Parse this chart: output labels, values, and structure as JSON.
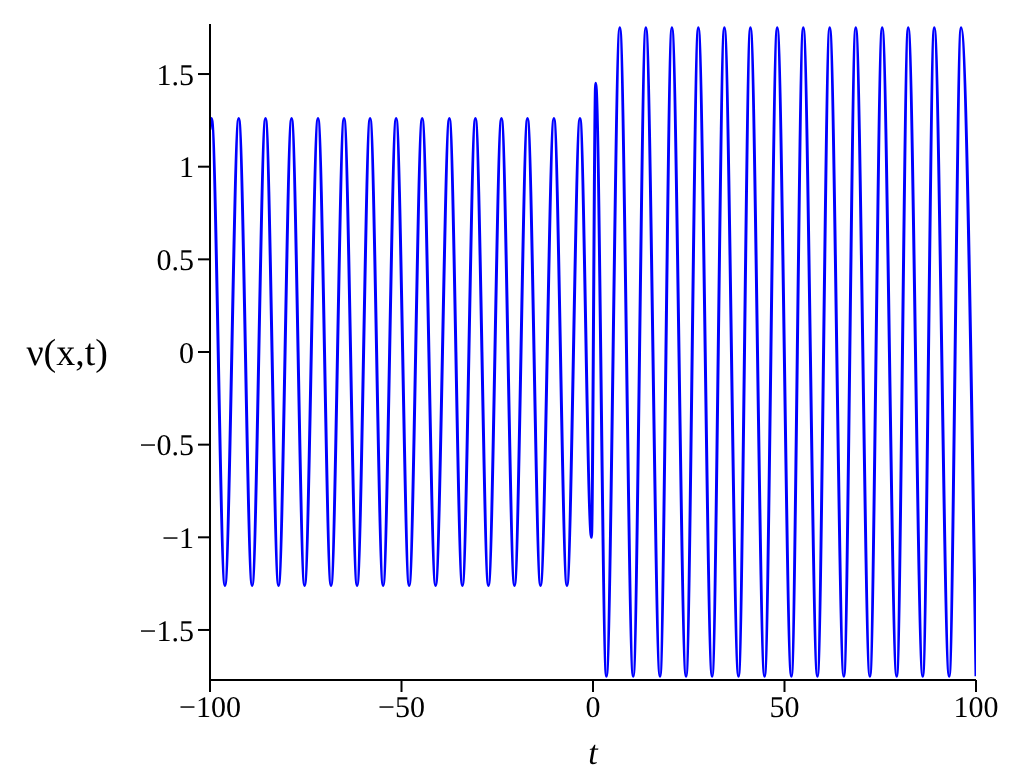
{
  "chart_data": {
    "type": "line",
    "xlabel": "t",
    "ylabel": "ν(x,t)",
    "color": "#0000ff",
    "x": [
      -100,
      -99.6,
      -96.1,
      -92.5,
      -89.0,
      -85.5,
      -82.1,
      -78.7,
      -75.3,
      -71.8,
      -68.4,
      -65.0,
      -61.6,
      -58.2,
      -54.8,
      -51.4,
      -48.0,
      -44.6,
      -41.1,
      -37.5,
      -34.1,
      -30.7,
      -27.3,
      -23.9,
      -20.5,
      -17.1,
      -13.7,
      -10.2,
      -6.8,
      -3.4,
      -0.4,
      0.7,
      3.5,
      7.0,
      10.5,
      13.8,
      17.5,
      20.6,
      24.3,
      27.5,
      31.1,
      34.3,
      38.0,
      41.1,
      44.8,
      48.1,
      51.8,
      54.9,
      58.6,
      61.8,
      65.5,
      68.6,
      72.3,
      75.5,
      79.3,
      82.3,
      86.1,
      89.1,
      93.0,
      96.1,
      100
    ],
    "values": [
      1.2,
      1.26,
      -1.26,
      1.26,
      -1.26,
      1.26,
      -1.26,
      1.26,
      -1.26,
      1.26,
      -1.26,
      1.26,
      -1.26,
      1.26,
      -1.26,
      1.26,
      -1.26,
      1.26,
      -1.26,
      1.26,
      -1.26,
      1.26,
      -1.26,
      1.26,
      -1.26,
      1.26,
      -1.26,
      1.26,
      -1.26,
      1.26,
      -1.0,
      1.45,
      -1.75,
      1.75,
      -1.75,
      1.75,
      -1.75,
      1.75,
      -1.75,
      1.75,
      -1.75,
      1.75,
      -1.75,
      1.75,
      -1.75,
      1.75,
      -1.75,
      1.75,
      -1.75,
      1.75,
      -1.75,
      1.75,
      -1.75,
      1.75,
      -1.75,
      1.75,
      -1.75,
      1.75,
      -1.75,
      1.75,
      -1.75
    ],
    "xlim": [
      -100,
      100
    ],
    "ylim": [
      -1.77,
      1.77
    ],
    "xticks": [
      {
        "value": -100,
        "label": "−100"
      },
      {
        "value": -50,
        "label": "−50"
      },
      0,
      50,
      100
    ],
    "yticks": [
      {
        "value": -1.5,
        "label": "−1.5"
      },
      {
        "value": -1,
        "label": "−1"
      },
      {
        "value": -0.5,
        "label": "−0.5"
      },
      0,
      0.5,
      1,
      1.5
    ],
    "grid": false,
    "legend": false
  }
}
